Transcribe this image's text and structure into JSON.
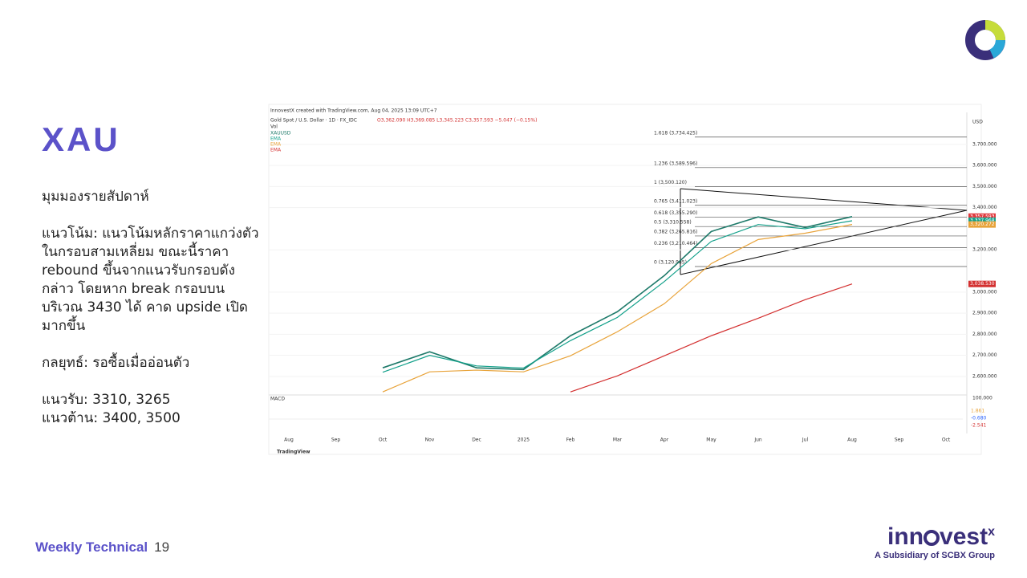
{
  "slide": {
    "title": "XAU",
    "view": "มุมมองรายสัปดาห์",
    "trend": "แนวโน้ม: แนวโน้มหลักราคาแกว่งตัวในกรอบสามเหลี่ยม ขณะนี้ราคา rebound ขึ้นจากแนวรับกรอบดังกล่าว โดยหาก break กรอบบน บริเวณ 3430 ได้ คาด upside เปิดมากขึ้น",
    "strategy": "กลยุทธ์: รอซื้อเมื่ออ่อนตัว",
    "support": "แนวรับ: 3310, 3265",
    "resistance": "แนวต้าน: 3400, 3500",
    "footer": "Weekly Technical",
    "page": "19",
    "brand": "inn",
    "brand2": "vest",
    "brand_x": "x",
    "subsidiary": "A Subsidiary of SCBX Group"
  },
  "chart_data": {
    "type": "line",
    "credit": "InnovestX created with TradingView.com, Aug 04, 2025 13:09 UTC+7",
    "title": "Gold Spot / U.S. Dollar · 1D · FX_IDC",
    "ohlc": "O3,362.090 H3,369.085 L3,345.223 C3,357.593 −5.047 (−0.15%)",
    "vol": "Vol",
    "unit": "USD",
    "macd_label": "MACD",
    "macd_values": [
      "1.861",
      "-0.680",
      "-2.541"
    ],
    "macd_axis": "100.000",
    "footer": "TradingView",
    "categories": [
      "Aug",
      "Sep",
      "Oct",
      "Nov",
      "Dec",
      "2025",
      "Feb",
      "Mar",
      "Apr",
      "May",
      "Jun",
      "Jul",
      "Aug",
      "Sep",
      "Oct"
    ],
    "series": [
      {
        "name": "XAUUSD",
        "color": "#1e7a6a",
        "values": [
          null,
          null,
          2641,
          2717,
          2641,
          2633,
          2793,
          2907,
          3078,
          3287,
          3356,
          3306,
          3357.593,
          null,
          null
        ],
        "value_labels": [
          null,
          null,
          null,
          null,
          null,
          null,
          null,
          null,
          null,
          null,
          null,
          null,
          "3,357.593",
          null,
          null
        ],
        "label_color": "#e0393e"
      },
      {
        "name": "EMA",
        "color": "#12a08a",
        "values": [
          null,
          null,
          2620,
          2700,
          2650,
          2640,
          2770,
          2880,
          3050,
          3240,
          3320,
          3300,
          3337.968,
          null,
          null
        ],
        "value_labels": [
          null,
          null,
          null,
          null,
          null,
          null,
          null,
          null,
          null,
          null,
          null,
          null,
          "3,337.968",
          null,
          null
        ],
        "label_color": "#12a08a"
      },
      {
        "name": "EMA",
        "color": "#e8a33a",
        "values": [
          null,
          null,
          2527,
          2622,
          2630,
          2622,
          2698,
          2812,
          2945,
          3135,
          3249,
          3279,
          3320.272,
          null,
          null
        ],
        "value_labels": [
          null,
          null,
          null,
          null,
          null,
          null,
          null,
          null,
          null,
          null,
          null,
          null,
          "3,320.272",
          null,
          null
        ],
        "label_color": "#e8a33a"
      },
      {
        "name": "EMA",
        "color": "#d32f2f",
        "values": [
          null,
          null,
          null,
          null,
          null,
          null,
          2527,
          2603,
          2698,
          2793,
          2876,
          2964,
          3038.53,
          null,
          null
        ],
        "value_labels": [
          null,
          null,
          null,
          null,
          null,
          null,
          null,
          null,
          null,
          null,
          null,
          null,
          "3,038.530",
          null,
          null
        ],
        "label_color": "#d32f2f"
      }
    ],
    "fib_levels": [
      {
        "value": 3734.425,
        "label": "1.618 (3,734.425)"
      },
      {
        "value": 3589.596,
        "label": "1.236 (3,589.596)"
      },
      {
        "value": 3500.12,
        "label": "1 (3,500.120)"
      },
      {
        "value": 3411.023,
        "label": "0.765 (3,411.023)"
      },
      {
        "value": 3355.29,
        "label": "0.618 (3,355.290)"
      },
      {
        "value": 3310.558,
        "label": "0.5 (3,310.558)"
      },
      {
        "value": 3265.816,
        "label": "0.382 (3,265.816)"
      },
      {
        "value": 3210.464,
        "label": "0.236 (3,210.464)"
      },
      {
        "value": 3120.985,
        "label": "0 (3,120.985)"
      }
    ],
    "ylim": [
      2520,
      3840
    ],
    "yticks": [
      {
        "value": 2600,
        "label": "2,600.000"
      },
      {
        "value": 2700,
        "label": "2,700.000"
      },
      {
        "value": 2800,
        "label": "2,800.000"
      },
      {
        "value": 2900,
        "label": "2,900.000"
      },
      {
        "value": 3000,
        "label": "3,000.000"
      },
      {
        "value": 3200,
        "label": "3,200.000"
      },
      {
        "value": 3400,
        "label": "3,400.000"
      },
      {
        "value": 3500,
        "label": "3,500.000"
      },
      {
        "value": 3600,
        "label": "3,600.000"
      },
      {
        "value": 3700,
        "label": "3,700.000"
      }
    ]
  }
}
